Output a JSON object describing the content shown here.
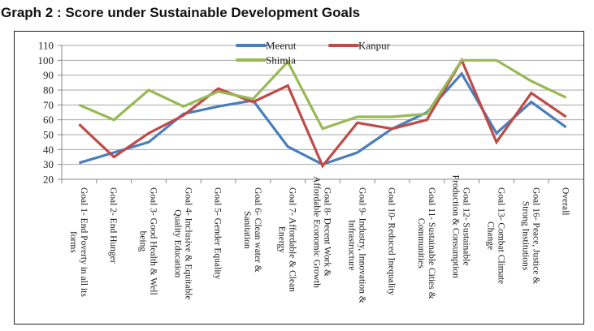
{
  "page": {
    "title": "Graph 2 : Score under Sustainable Development Goals"
  },
  "chart_data": {
    "type": "line",
    "title": "Graph 2 : Score under Sustainable Development Goals",
    "xlabel": "",
    "ylabel": "",
    "ylim": [
      20,
      110
    ],
    "yticks": [
      20,
      30,
      40,
      50,
      60,
      70,
      80,
      90,
      100,
      110
    ],
    "grid": true,
    "legend_position": "top-center",
    "categories": [
      [
        "Goal 1- End Poverty in all its",
        "forms"
      ],
      [
        "Goal 2- End Hunger"
      ],
      [
        "Goal 3- Good Health & Well",
        "being"
      ],
      [
        "Goal 4- Inclusive & Equitable",
        "Quality Education"
      ],
      [
        "Goal 5- Gender Equality"
      ],
      [
        "Goal 6- Clean water &",
        "Sanitation"
      ],
      [
        "Goal 7- Affordable & Clean",
        "Energy"
      ],
      [
        "Goal 8- Decent Work &",
        "Affordable Economic Growth"
      ],
      [
        "Goal 9- Industry, Innovation &",
        "Infrastructure"
      ],
      [
        "Goal 10- Reduced Inequality"
      ],
      [
        "Goal 11- Sustainable Cities &",
        "Communities"
      ],
      [
        "Goal 12- Sustainable",
        "Production & Consumption"
      ],
      [
        "Goal 13- Combat Climate",
        "Change"
      ],
      [
        "Goal 16- Peace, Justice &",
        "Strong Institutions"
      ],
      [
        "Overall"
      ]
    ],
    "series": [
      {
        "name": "Meerut",
        "color": "#4a7ebb",
        "values": [
          31,
          38,
          45,
          64,
          69,
          73,
          42,
          30,
          38,
          54,
          65,
          91,
          51,
          72,
          55
        ]
      },
      {
        "name": "Kanpur",
        "color": "#be4b48",
        "values": [
          57,
          35,
          51,
          63,
          81,
          72,
          83,
          29,
          58,
          54,
          60,
          100,
          45,
          78,
          62
        ]
      },
      {
        "name": "Shimla",
        "color": "#98b954",
        "values": [
          70,
          60,
          80,
          69,
          79,
          74,
          99,
          54,
          62,
          62,
          64,
          100,
          100,
          86,
          75
        ]
      }
    ],
    "grid_color": "#a6a6a6"
  }
}
